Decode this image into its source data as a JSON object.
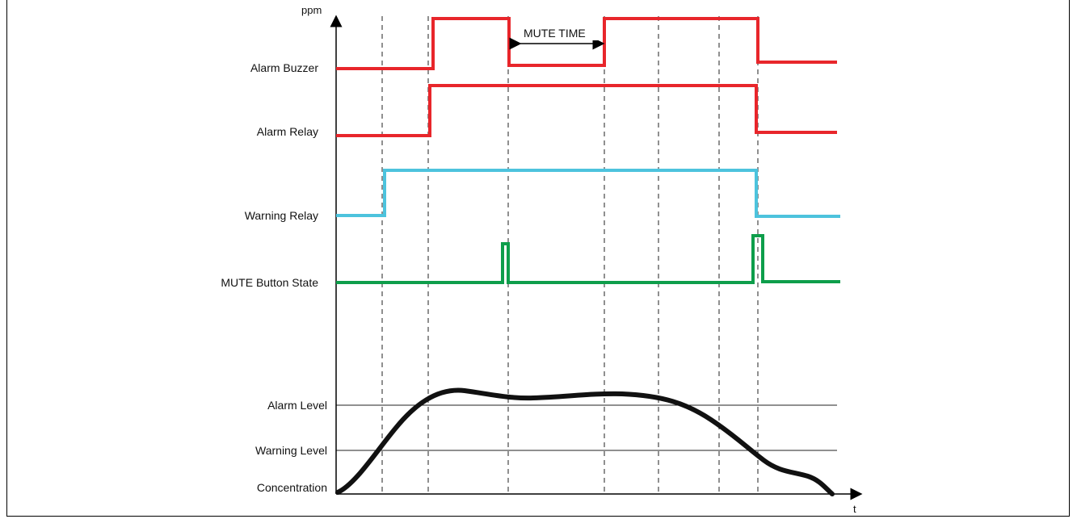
{
  "y_axis_label": "ppm",
  "x_axis_label": "t",
  "mute_time_label": "MUTE TIME",
  "signals": [
    {
      "label": "Alarm Buzzer",
      "color": "#e8262b"
    },
    {
      "label": "Alarm Relay",
      "color": "#e8262b"
    },
    {
      "label": "Warning Relay",
      "color": "#4dc3dd"
    },
    {
      "label": "MUTE Button State",
      "color": "#0e9e4b"
    }
  ],
  "levels": {
    "alarm": "Alarm Level",
    "warning": "Warning Level",
    "concentration": "Concentration"
  },
  "curve_color": "#111111"
}
